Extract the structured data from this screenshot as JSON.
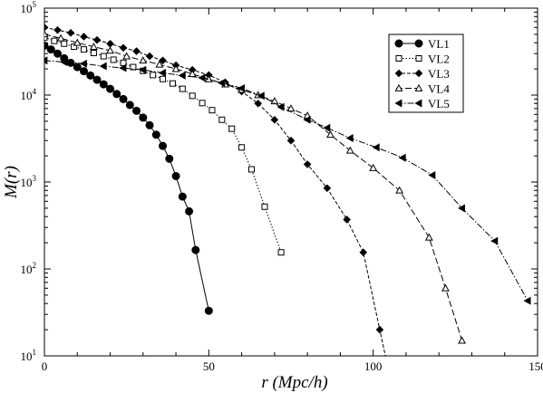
{
  "chart_data": {
    "type": "line",
    "title": "",
    "xlabel": "r (Mpc/h)",
    "ylabel": "M(r)",
    "xlim": [
      0,
      150
    ],
    "ylim": [
      10,
      100000
    ],
    "yscale": "log",
    "grid": false,
    "legend_position": "top-right",
    "x_ticks": [
      0,
      50,
      100,
      150
    ],
    "y_ticks": [
      {
        "value": 10,
        "base": "10",
        "exp": "1"
      },
      {
        "value": 100,
        "base": "10",
        "exp": "2"
      },
      {
        "value": 1000,
        "base": "10",
        "exp": "3"
      },
      {
        "value": 10000,
        "base": "10",
        "exp": "4"
      },
      {
        "value": 100000,
        "base": "10",
        "exp": "5"
      }
    ],
    "series": [
      {
        "name": "VL1",
        "marker": "circle-filled",
        "dash": "",
        "points": [
          [
            0,
            37000
          ],
          [
            2,
            33500
          ],
          [
            4,
            30000
          ],
          [
            6,
            26500
          ],
          [
            8,
            23500
          ],
          [
            10,
            21000
          ],
          [
            12,
            18800
          ],
          [
            14,
            16800
          ],
          [
            16,
            15000
          ],
          [
            18,
            13300
          ],
          [
            20,
            11800
          ],
          [
            22,
            10300
          ],
          [
            24,
            9000
          ],
          [
            26,
            7700
          ],
          [
            28,
            6600
          ],
          [
            30,
            5500
          ],
          [
            32,
            4500
          ],
          [
            34,
            3500
          ],
          [
            36,
            2600
          ],
          [
            38,
            1850
          ],
          [
            40,
            1170
          ],
          [
            42,
            680
          ],
          [
            44,
            460
          ],
          [
            46,
            165
          ],
          [
            50,
            33
          ]
        ]
      },
      {
        "name": "VL2",
        "marker": "square-open",
        "dash": "1.5,2",
        "points": [
          [
            0,
            46000
          ],
          [
            3,
            42000
          ],
          [
            6,
            39000
          ],
          [
            9,
            36000
          ],
          [
            12,
            33500
          ],
          [
            15,
            30500
          ],
          [
            18,
            28000
          ],
          [
            21,
            25500
          ],
          [
            24,
            23500
          ],
          [
            27,
            21000
          ],
          [
            30,
            19000
          ],
          [
            33,
            17000
          ],
          [
            36,
            15300
          ],
          [
            39,
            13600
          ],
          [
            42,
            11800
          ],
          [
            45,
            9800
          ],
          [
            48,
            8100
          ],
          [
            51,
            6700
          ],
          [
            54,
            5200
          ],
          [
            57,
            4100
          ],
          [
            60,
            2500
          ],
          [
            63,
            1400
          ],
          [
            67,
            520
          ],
          [
            72,
            155
          ]
        ]
      },
      {
        "name": "VL3",
        "marker": "diamond-filled",
        "dash": "4,2",
        "points": [
          [
            0,
            60000
          ],
          [
            4,
            56000
          ],
          [
            8,
            52000
          ],
          [
            12,
            47000
          ],
          [
            16,
            43000
          ],
          [
            20,
            39000
          ],
          [
            24,
            35000
          ],
          [
            28,
            32000
          ],
          [
            32,
            28000
          ],
          [
            36,
            25000
          ],
          [
            40,
            22000
          ],
          [
            45,
            19500
          ],
          [
            50,
            17000
          ],
          [
            55,
            14000
          ],
          [
            60,
            11000
          ],
          [
            65,
            8000
          ],
          [
            70,
            5200
          ],
          [
            75,
            3000
          ],
          [
            80,
            1600
          ],
          [
            86,
            850
          ],
          [
            92,
            370
          ],
          [
            97,
            155
          ],
          [
            102,
            20
          ],
          [
            106,
            4
          ]
        ]
      },
      {
        "name": "VL4",
        "marker": "triangle-up-open",
        "dash": "7,3",
        "points": [
          [
            0,
            50000
          ],
          [
            5,
            45000
          ],
          [
            10,
            40000
          ],
          [
            15,
            36000
          ],
          [
            20,
            32500
          ],
          [
            25,
            28000
          ],
          [
            30,
            25000
          ],
          [
            35,
            22500
          ],
          [
            40,
            20000
          ],
          [
            45,
            17500
          ],
          [
            50,
            15200
          ],
          [
            55,
            13300
          ],
          [
            60,
            11500
          ],
          [
            65,
            10000
          ],
          [
            70,
            8500
          ],
          [
            75,
            7000
          ],
          [
            80,
            5800
          ],
          [
            87,
            3500
          ],
          [
            93,
            2300
          ],
          [
            100,
            1450
          ],
          [
            108,
            800
          ],
          [
            117,
            230
          ],
          [
            122,
            60
          ],
          [
            127,
            15
          ]
        ]
      },
      {
        "name": "VL5",
        "marker": "triangle-left-filled",
        "dash": "7,2,1.5,2",
        "points": [
          [
            0,
            25000
          ],
          [
            6,
            24000
          ],
          [
            12,
            23000
          ],
          [
            18,
            21500
          ],
          [
            24,
            20500
          ],
          [
            30,
            19500
          ],
          [
            36,
            18000
          ],
          [
            42,
            16800
          ],
          [
            48,
            15800
          ],
          [
            54,
            13800
          ],
          [
            60,
            12000
          ],
          [
            66,
            9800
          ],
          [
            72,
            7300
          ],
          [
            80,
            5200
          ],
          [
            86,
            4200
          ],
          [
            93,
            3200
          ],
          [
            101,
            2500
          ],
          [
            109,
            1900
          ],
          [
            118,
            1200
          ],
          [
            127,
            500
          ],
          [
            137,
            210
          ],
          [
            147,
            43
          ]
        ]
      }
    ]
  }
}
